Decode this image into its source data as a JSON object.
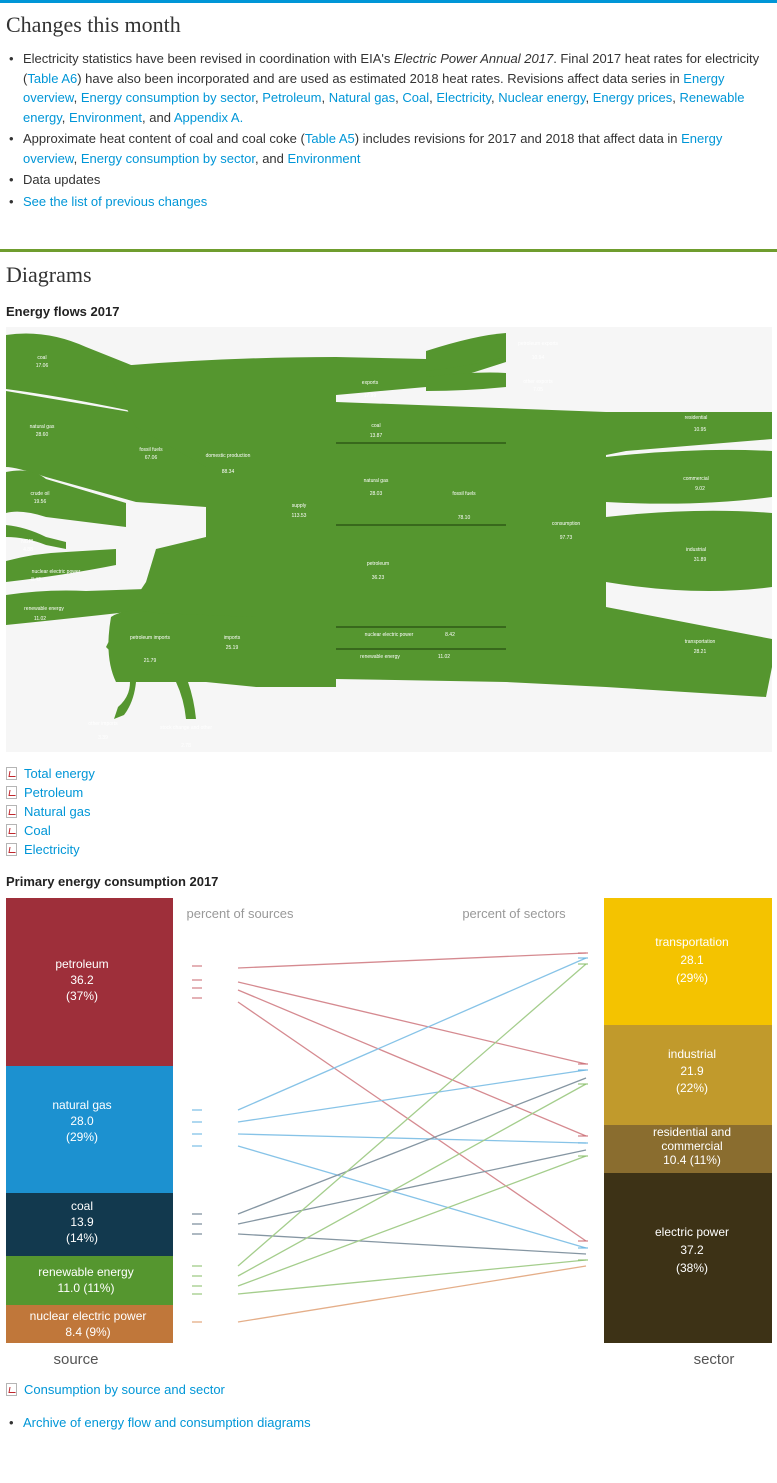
{
  "colors": {
    "top_rule": "#0096d7",
    "section_rule": "#6f9d2e",
    "link": "#0096d7",
    "flow_green": "#55962f",
    "petroleum": "#9e2f3a",
    "natural_gas": "#1c91d0",
    "coal": "#12394e",
    "renewable": "#55962f",
    "nuclear": "#c0773a",
    "transportation": "#f4c300",
    "industrial": "#c19a2c",
    "res_comm": "#8a6d2f",
    "electric_power": "#3d3216"
  },
  "changes": {
    "title": "Changes this month",
    "item1": {
      "t1": "Electricity statistics have been revised in coordination with EIA's ",
      "em": "Electric Power Annual 2017",
      "t2": ". Final 2017 heat rates for electricity (",
      "a_table": "Table A6",
      "t3": ") have also been incorporated and are used as estimated 2018 heat rates. Revisions affect data series in ",
      "l1": "Energy overview",
      "l2": "Energy consumption by sector",
      "l3": "Petroleum",
      "l4": "Natural gas",
      "l5": "Coal",
      "l6": "Electricity",
      "l7": "Nuclear energy",
      "l8": "Energy prices",
      "l9": "Renewable energy",
      "l10": "Environment",
      "and": ", and ",
      "l11": "Appendix A."
    },
    "item2": {
      "t1": "Approximate heat content of coal and coal coke (",
      "a_table": "Table A5",
      "t2": ") includes revisions for 2017 and 2018 that affect data in ",
      "l1": "Energy overview",
      "l2": "Energy consumption by sector",
      "and": ", and ",
      "l3": "Environment"
    },
    "item3": "Data updates",
    "item4": "See the list of previous changes"
  },
  "diagrams": {
    "title": "Diagrams",
    "flows_title": "Energy flows 2017",
    "flows_labels": {
      "coal": "coal",
      "coal_v": "17.06",
      "natural_gas": "natural gas",
      "natural_gas_v": "28.60",
      "crude_oil": "crude oil",
      "crude_oil_v": "19.56",
      "ngpl": "NGPL",
      "ngpl_v": "4.88",
      "nuclear": "nuclear electric power",
      "nuclear_v": "8.42",
      "renewable": "renewable energy",
      "renewable_v": "11.02",
      "fossil_fuels": "fossil fuels",
      "fossil_fuels_v": "67.06",
      "domestic_production": "domestic production",
      "domestic_production_v": "88.34",
      "supply": "supply",
      "supply_v": "113.53",
      "exports": "exports",
      "exports_v": "17.99",
      "petroleum_exports": "petroleum exports",
      "petroleum_exports_v": "10.94",
      "other_exports": "other exports",
      "other_exports_v": "7.05",
      "coal_mid": "coal",
      "coal_mid_v": "13.87",
      "natgas_mid": "natural gas",
      "natgas_mid_v": "28.03",
      "fossil_fuels_mid": "fossil fuels",
      "fossil_fuels_mid_v": "78.10",
      "petroleum_mid": "petroleum",
      "petroleum_mid_v": "36.23",
      "consumption": "consumption",
      "consumption_v": "97.73",
      "residential": "residential",
      "residential_v": "10.95",
      "commercial": "commercial",
      "commercial_v": "9.02",
      "industrial": "industrial",
      "industrial_v": "31.89",
      "transportation": "transportation",
      "transportation_v": "28.21",
      "nuclear_mid": "nuclear electric power",
      "nuclear_mid_v": "8.42",
      "renewable_mid": "renewable energy",
      "renewable_mid_v": "11.02",
      "petroleum_imports": "petroleum imports",
      "petroleum_imports_v": "21.79",
      "imports": "imports",
      "imports_v": "25.19",
      "other_imports": "other imports",
      "other_imports_v": "3.39",
      "stock_change": "stock change and other",
      "stock_change_v": "2.78"
    },
    "flow_links": [
      "Total energy",
      "Petroleum",
      "Natural gas",
      "Coal",
      "Electricity"
    ],
    "pc_title": "Primary energy consumption 2017",
    "pc_labels": {
      "percent_sources": "percent of sources",
      "percent_sectors": "percent of sectors",
      "source": "source",
      "sector": "sector",
      "petroleum": "petroleum",
      "petroleum_v": "36.2",
      "petroleum_pct": "(37%)",
      "natural_gas": "natural gas",
      "natural_gas_v": "28.0",
      "natural_gas_pct": "(29%)",
      "coal": "coal",
      "coal_v": "13.9",
      "coal_pct": "(14%)",
      "renewable": "renewable energy",
      "renewable_line2": "11.0 (11%)",
      "nuclear": "nuclear electric power",
      "nuclear_line2": "8.4 (9%)",
      "transportation": "transportation",
      "transportation_v": "28.1",
      "transportation_pct": "(29%)",
      "industrial": "industrial",
      "industrial_v": "21.9",
      "industrial_pct": "(22%)",
      "res_comm_1": "residential and",
      "res_comm_2": "commercial",
      "res_comm_3": "10.4 (11%)",
      "electric_power": "electric power",
      "electric_power_v": "37.2",
      "electric_power_pct": "(38%)"
    },
    "pc_link": "Consumption by source and sector",
    "archive_link": "Archive of energy flow and consumption diagrams"
  }
}
